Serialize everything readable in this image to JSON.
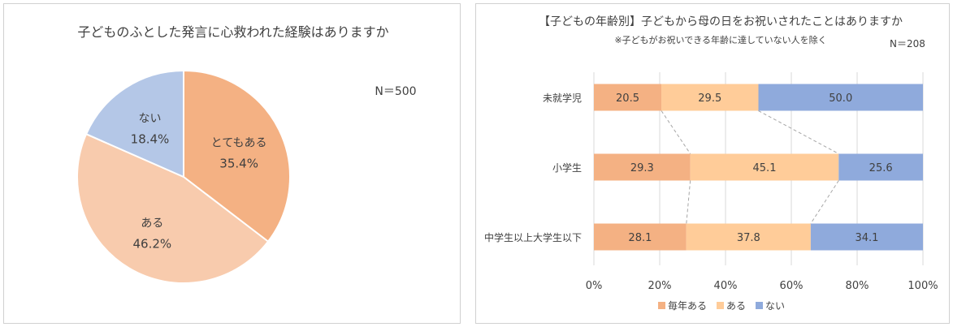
{
  "chart_data": [
    {
      "type": "pie",
      "title": "子どものふとした発言に心救われた経験はありますか",
      "note": "N＝500",
      "slices": [
        {
          "label": "とてもある",
          "value": 35.4,
          "value_label": "35.4%",
          "color": "#F4B183"
        },
        {
          "label": "ある",
          "value": 46.2,
          "value_label": "46.2%",
          "color": "#F8CBAD"
        },
        {
          "label": "ない",
          "value": 18.4,
          "value_label": "18.4%",
          "color": "#B4C7E7"
        }
      ]
    },
    {
      "type": "bar",
      "orientation": "horizontal-stacked-100",
      "title": "【子どもの年齢別】子どもから母の日をお祝いされたことはありますか",
      "subtitle": "※子どもがお祝いできる年齢に達していない人を除く",
      "note": "N＝208",
      "categories": [
        "未就学児",
        "小学生",
        "中学生以上大学生以下"
      ],
      "series": [
        {
          "name": "毎年ある",
          "color": "#F4B183",
          "values": [
            20.5,
            29.3,
            28.1
          ]
        },
        {
          "name": "ある",
          "color": "#FFCC99",
          "values": [
            29.5,
            45.1,
            37.8
          ]
        },
        {
          "name": "ない",
          "color": "#8FAADC",
          "values": [
            50.0,
            25.6,
            34.1
          ]
        }
      ],
      "data_labels": [
        [
          "20.5",
          "29.5",
          "50.0"
        ],
        [
          "29.3",
          "45.1",
          "25.6"
        ],
        [
          "28.1",
          "37.8",
          "34.1"
        ]
      ],
      "xlim": [
        0,
        100
      ],
      "xticks": [
        "0%",
        "20%",
        "40%",
        "60%",
        "80%",
        "100%"
      ],
      "legend_position": "bottom",
      "series_lines": true
    }
  ]
}
